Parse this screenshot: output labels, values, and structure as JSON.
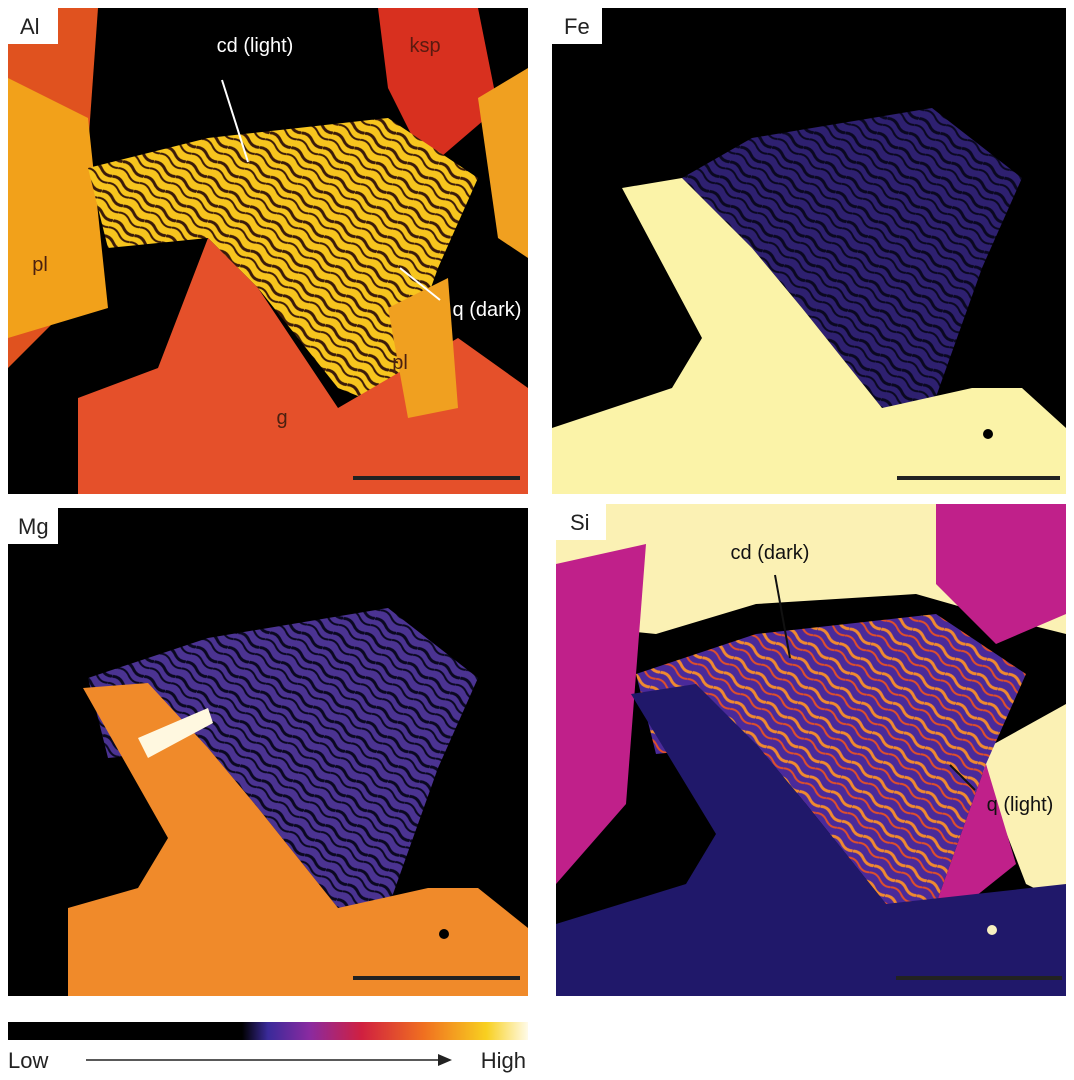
{
  "panels": [
    {
      "label": "Al",
      "annotations": [
        "cd (light)",
        "ksp",
        "pl",
        "q (dark)",
        "pl",
        "g"
      ]
    },
    {
      "label": "Fe"
    },
    {
      "label": "Mg"
    },
    {
      "label": "Si",
      "annotations": [
        "cd (dark)",
        "q (light)"
      ]
    }
  ],
  "colorbar": {
    "low": "Low",
    "high": "High"
  }
}
